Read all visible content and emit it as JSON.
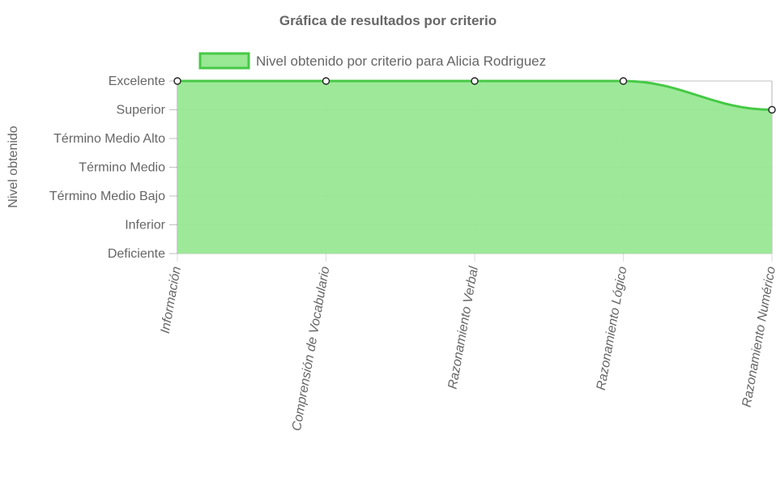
{
  "chart_data": {
    "type": "area",
    "title": "Gráfica de resultados por criterio",
    "xlabel": "",
    "ylabel": "Nivel obtenido",
    "categories": [
      "Información",
      "Comprensión de Vocabulario",
      "Razonamiento Verbal",
      "Razonamiento Lógico",
      "Razonamiento Numérico"
    ],
    "y_levels": [
      "Deficiente",
      "Inferior",
      "Término Medio Bajo",
      "Término Medio",
      "Término Medio Alto",
      "Superior",
      "Excelente"
    ],
    "series": [
      {
        "name": "Nivel obtenido por criterio para Alicia Rodriguez",
        "values": [
          "Excelente",
          "Excelente",
          "Excelente",
          "Excelente",
          "Superior"
        ]
      }
    ],
    "legend_position": "top",
    "grid": true,
    "colors": {
      "fill": "#98e894",
      "line": "#46c946",
      "grid": "#777777",
      "text": "#666666",
      "point_fill": "#ffffff",
      "point_stroke": "#222222"
    }
  }
}
